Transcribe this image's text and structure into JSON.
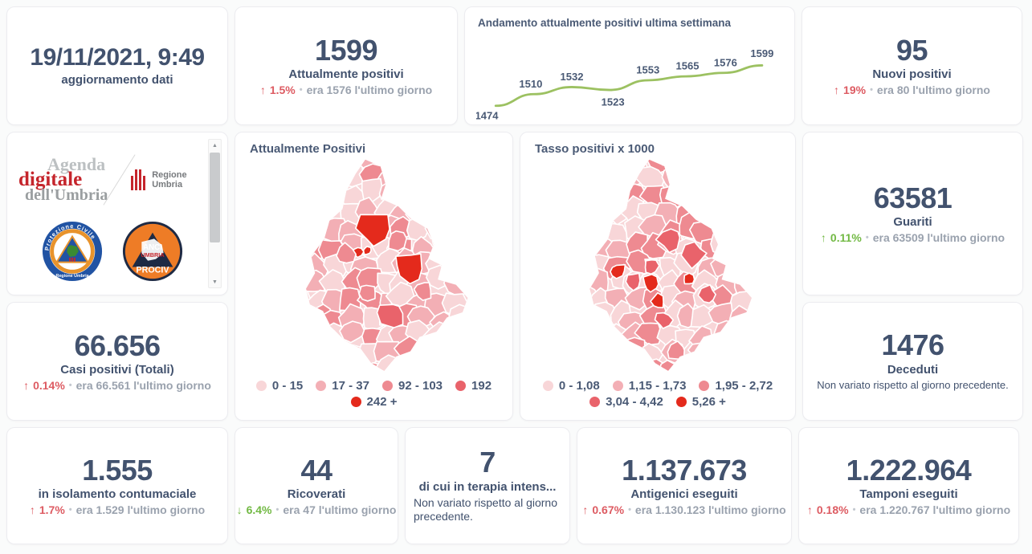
{
  "theme": {
    "text_dark": "#42526e",
    "text_gray": "#9aa2ae",
    "accent_red": "#dd5b62",
    "accent_green": "#72b944",
    "line_green": "#9cc161",
    "palette": [
      "#f8d6d8",
      "#f3afb5",
      "#ee8a91",
      "#e9636b",
      "#e42a1c"
    ]
  },
  "icons": {
    "up": "↑",
    "down": "↓",
    "bullet": "•",
    "scroll_up": "▲",
    "scroll_down": "▼"
  },
  "cards": {
    "updated": {
      "value": "19/11/2021, 9:49",
      "label": "aggiornamento dati"
    },
    "attualmente_positivi": {
      "value": "1599",
      "label": "Attualmente positivi",
      "delta": "1.5%",
      "era": "era 1576  l'ultimo giorno"
    },
    "nuovi_positivi": {
      "value": "95",
      "label": "Nuovi positivi",
      "delta": "19%",
      "era": "era 80  l'ultimo giorno"
    },
    "guariti": {
      "value": "63581",
      "label": "Guariti",
      "delta": "0.11%",
      "era": "era 63509  l'ultimo giorno"
    },
    "casi_totali": {
      "value": "66.656",
      "label": "Casi positivi (Totali)",
      "delta": "0.14%",
      "era": "era 66.561  l'ultimo giorno"
    },
    "deceduti": {
      "value": "1476",
      "label": "Deceduti",
      "note": "Non variato rispetto al giorno precedente."
    },
    "isolamento": {
      "value": "1.555",
      "label": "in isolamento contumaciale",
      "delta": "1.7%",
      "era": "era 1.529  l'ultimo giorno"
    },
    "ricoverati": {
      "value": "44",
      "label": "Ricoverati",
      "delta": "6.4%",
      "era": "era 47  l'ultimo giorno"
    },
    "terapia": {
      "value": "7",
      "label": "di cui in terapia intens...",
      "note": "Non variato rispetto al giorno precedente."
    },
    "antigenici": {
      "value": "1.137.673",
      "label": "Antigenici eseguiti",
      "delta": "0.67%",
      "era": "era 1.130.123  l'ultimo giorno"
    },
    "tamponi": {
      "value": "1.222.964",
      "label": "Tamponi eseguiti",
      "delta": "0.18%",
      "era": "era 1.220.767  l'ultimo giorno"
    }
  },
  "chart_data": {
    "type": "line",
    "title": "Andamento attualmente positivi ultima settimana",
    "values": [
      1474,
      1510,
      1532,
      1523,
      1553,
      1565,
      1576,
      1599
    ],
    "ylim": [
      1474,
      1599
    ],
    "grid": false,
    "legend": "none"
  },
  "maps": [
    {
      "title": "Attualmente Positivi",
      "type": "choropleth",
      "legend": [
        "0 - 15",
        "17 - 37",
        "92 - 103",
        "192",
        "242 +"
      ]
    },
    {
      "title": "Tasso positivi x 1000",
      "type": "choropleth",
      "legend": [
        "0 - 1,08",
        "1,15 - 1,73",
        "1,95 - 2,72",
        "3,04 - 4,42",
        "5,26 +"
      ]
    }
  ],
  "logos": {
    "agenda": {
      "line1": "Agenda",
      "line2": "digitale",
      "line3": "dell'Umbria"
    },
    "regione": {
      "label": "Regione Umbria"
    },
    "protezione": {
      "top": "Protezione Civile",
      "bottom": "Regione Umbria"
    },
    "anci": {
      "line1": "ANCI",
      "line2": "UMBRIA",
      "line3": "PROCIV"
    }
  }
}
